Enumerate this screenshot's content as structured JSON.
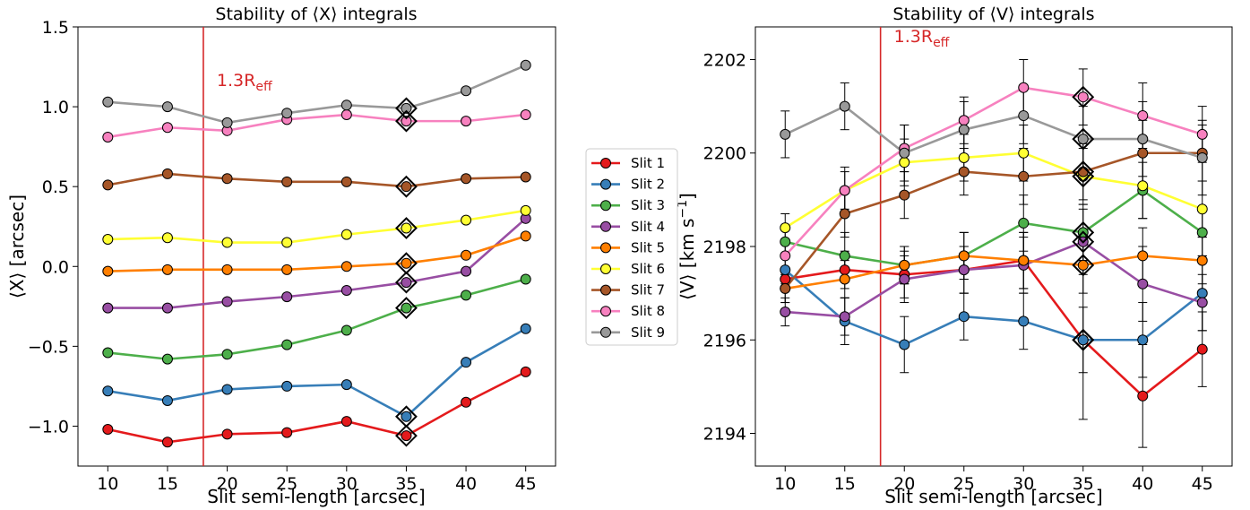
{
  "chart_data": [
    {
      "type": "line",
      "title": "Stability of ⟨X⟩ integrals",
      "xlabel": "Slit semi-length [arcsec]",
      "ylabel": "⟨X⟩ [arcsec]",
      "x": [
        10,
        15,
        20,
        25,
        30,
        35,
        40,
        45
      ],
      "xticks": [
        "10",
        "15",
        "20",
        "25",
        "30",
        "35",
        "40",
        "45"
      ],
      "yticks": [
        "−1.0",
        "−0.5",
        "0.0",
        "0.5",
        "1.0",
        "1.5"
      ],
      "ytick_values": [
        -1.0,
        -0.5,
        0.0,
        0.5,
        1.0,
        1.5
      ],
      "xlim": [
        7.5,
        47.5
      ],
      "ylim": [
        -1.25,
        1.5
      ],
      "vline_x": 18,
      "vline_label": "1.3R",
      "vline_label_sub": "eff",
      "highlight_x": 35,
      "grid": false,
      "series": [
        {
          "name": "Slit 1",
          "color": "#e41a1c",
          "values": [
            -1.02,
            -1.1,
            -1.05,
            -1.04,
            -0.97,
            -1.06,
            -0.85,
            -0.66
          ]
        },
        {
          "name": "Slit 2",
          "color": "#377eb8",
          "values": [
            -0.78,
            -0.84,
            -0.77,
            -0.75,
            -0.74,
            -0.94,
            -0.6,
            -0.39
          ]
        },
        {
          "name": "Slit 3",
          "color": "#4daf4a",
          "values": [
            -0.54,
            -0.58,
            -0.55,
            -0.49,
            -0.4,
            -0.26,
            -0.18,
            -0.08
          ]
        },
        {
          "name": "Slit 4",
          "color": "#984ea3",
          "values": [
            -0.26,
            -0.26,
            -0.22,
            -0.19,
            -0.15,
            -0.1,
            -0.03,
            0.3
          ]
        },
        {
          "name": "Slit 5",
          "color": "#ff7f00",
          "values": [
            -0.03,
            -0.02,
            -0.02,
            -0.02,
            0.0,
            0.02,
            0.07,
            0.19
          ]
        },
        {
          "name": "Slit 6",
          "color": "#ffff33",
          "values": [
            0.17,
            0.18,
            0.15,
            0.15,
            0.2,
            0.24,
            0.29,
            0.35
          ]
        },
        {
          "name": "Slit 7",
          "color": "#a65628",
          "values": [
            0.51,
            0.58,
            0.55,
            0.53,
            0.53,
            0.5,
            0.55,
            0.56
          ]
        },
        {
          "name": "Slit 8",
          "color": "#f781bf",
          "values": [
            0.81,
            0.87,
            0.85,
            0.92,
            0.95,
            0.91,
            0.91,
            0.95
          ]
        },
        {
          "name": "Slit 9",
          "color": "#999999",
          "values": [
            1.03,
            1.0,
            0.9,
            0.96,
            1.01,
            0.99,
            1.1,
            1.26
          ]
        }
      ]
    },
    {
      "type": "line",
      "title": "Stability of ⟨V⟩ integrals",
      "xlabel": "Slit semi-length [arcsec]",
      "ylabel": "⟨V⟩ [km s",
      "ylabel_sup": "−1",
      "ylabel_end": "]",
      "x": [
        10,
        15,
        20,
        25,
        30,
        35,
        40,
        45
      ],
      "xticks": [
        "10",
        "15",
        "20",
        "25",
        "30",
        "35",
        "40",
        "45"
      ],
      "yticks": [
        "2194",
        "2196",
        "2198",
        "2200",
        "2202"
      ],
      "ytick_values": [
        2194,
        2196,
        2198,
        2200,
        2202
      ],
      "xlim": [
        7.5,
        47.5
      ],
      "ylim": [
        2193.3,
        2202.7
      ],
      "vline_x": 18,
      "vline_label": "1.3R",
      "vline_label_sub": "eff",
      "highlight_x": 35,
      "grid": false,
      "series": [
        {
          "name": "Slit 1",
          "color": "#e41a1c",
          "values": [
            2197.3,
            2197.5,
            2197.4,
            2197.5,
            2197.7,
            2196.0,
            2194.8,
            2195.8
          ],
          "err": [
            0.2,
            0.4,
            0.5,
            0.5,
            0.6,
            1.7,
            1.1,
            0.8
          ]
        },
        {
          "name": "Slit 2",
          "color": "#377eb8",
          "values": [
            2197.5,
            2196.4,
            2195.9,
            2196.5,
            2196.4,
            2196.0,
            2196.0,
            2197.0
          ],
          "err": [
            0.3,
            0.5,
            0.6,
            0.5,
            0.6,
            0.7,
            0.8,
            0.8
          ]
        },
        {
          "name": "Slit 3",
          "color": "#4daf4a",
          "values": [
            2198.1,
            2197.8,
            2197.6,
            2197.8,
            2198.5,
            2198.3,
            2199.2,
            2198.3
          ],
          "err": [
            0.3,
            0.5,
            0.4,
            0.5,
            0.6,
            0.6,
            0.6,
            0.5
          ]
        },
        {
          "name": "Slit 4",
          "color": "#984ea3",
          "values": [
            2196.6,
            2196.5,
            2197.3,
            2197.5,
            2197.6,
            2198.1,
            2197.2,
            2196.8
          ],
          "err": [
            0.3,
            0.4,
            0.5,
            0.5,
            0.6,
            0.7,
            0.8,
            0.6
          ]
        },
        {
          "name": "Slit 5",
          "color": "#ff7f00",
          "values": [
            2197.1,
            2197.3,
            2197.6,
            2197.8,
            2197.7,
            2197.6,
            2197.8,
            2197.7
          ],
          "err": [
            0.3,
            0.4,
            0.4,
            0.5,
            0.6,
            0.6,
            0.6,
            0.5
          ]
        },
        {
          "name": "Slit 6",
          "color": "#ffff33",
          "values": [
            2198.4,
            2199.2,
            2199.8,
            2199.9,
            2200.0,
            2199.5,
            2199.3,
            2198.8
          ],
          "err": [
            0.3,
            0.5,
            0.5,
            0.5,
            0.6,
            0.6,
            0.7,
            0.6
          ]
        },
        {
          "name": "Slit 7",
          "color": "#a65628",
          "values": [
            2197.1,
            2198.7,
            2199.1,
            2199.6,
            2199.5,
            2199.6,
            2200.0,
            2200.0
          ],
          "err": [
            0.3,
            0.5,
            0.5,
            0.5,
            0.6,
            0.6,
            0.7,
            0.6
          ]
        },
        {
          "name": "Slit 8",
          "color": "#f781bf",
          "values": [
            2197.8,
            2199.2,
            2200.1,
            2200.7,
            2201.4,
            2201.2,
            2200.8,
            2200.4
          ],
          "err": [
            0.3,
            0.4,
            0.5,
            0.5,
            0.6,
            0.6,
            0.7,
            0.6
          ]
        },
        {
          "name": "Slit 9",
          "color": "#999999",
          "values": [
            2200.4,
            2201.0,
            2200.0,
            2200.5,
            2200.8,
            2200.3,
            2200.3,
            2199.9
          ],
          "err": [
            0.5,
            0.5,
            0.6,
            0.6,
            0.6,
            0.7,
            0.8,
            0.8
          ]
        }
      ]
    }
  ],
  "legend": {
    "placement": "between-panels",
    "items": [
      "Slit 1",
      "Slit 2",
      "Slit 3",
      "Slit 4",
      "Slit 5",
      "Slit 6",
      "Slit 7",
      "Slit 8",
      "Slit 9"
    ]
  }
}
